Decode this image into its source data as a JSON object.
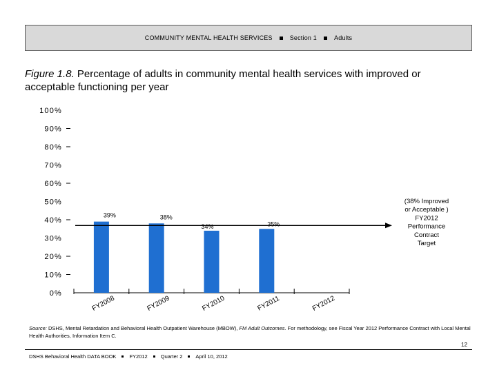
{
  "header": {
    "section_title": "COMMUNITY MENTAL HEALTH SERVICES",
    "section": "Section 1",
    "population": "Adults"
  },
  "figure": {
    "label": "Figure 1.8.",
    "title": "Percentage of adults in community mental health services with improved or acceptable functioning per year"
  },
  "chart_data": {
    "type": "bar",
    "categories": [
      "FY2008",
      "FY2009",
      "FY2010",
      "FY2011",
      "FY2012"
    ],
    "series": [
      {
        "values": [
          39,
          38,
          34,
          35,
          null
        ],
        "data_labels": [
          "39%",
          "38%",
          "34%",
          "35%",
          ""
        ]
      }
    ],
    "y_ticks": [
      "0%",
      "10%",
      "20%",
      "30%",
      "40%",
      "50%",
      "60%",
      "70%",
      "80%",
      "90%",
      "100%"
    ],
    "ylim": [
      0,
      100
    ],
    "bar_color": "#1f6fd1",
    "target": {
      "value": 38,
      "label_lines": [
        "(38% Improved",
        "or Acceptable )",
        "FY2012",
        "Performance",
        "Contract",
        "Target"
      ]
    },
    "grid": false,
    "legend": "none"
  },
  "source": {
    "label": "Source:",
    "text_before": " DSHS, Mental Retardation and Behavioral Health Outpatient Warehouse (MBOW), ",
    "italic": "FM Adult Outcomes",
    "text_after": ". For methodology, see Fiscal Year 2012 Performance Contract with Local Mental Health Authorities, Information Item C."
  },
  "page_number": "12",
  "footer": {
    "publication": "DSHS Behavioral Health DATA BOOK",
    "fiscal_year": "FY2012",
    "quarter": "Quarter 2",
    "date": "April 10, 2012"
  }
}
